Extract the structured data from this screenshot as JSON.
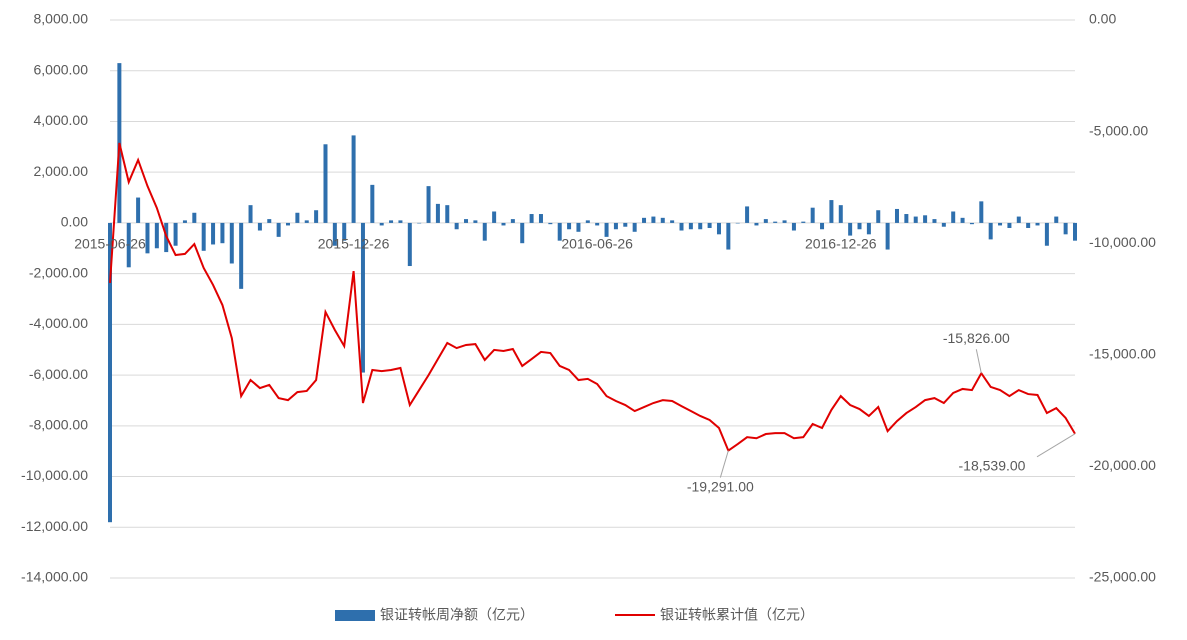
{
  "chart_data": {
    "type": "bar-line",
    "categories": [
      "2015-06-26",
      null,
      null,
      null,
      null,
      null,
      null,
      null,
      null,
      null,
      null,
      null,
      null,
      null,
      null,
      null,
      null,
      null,
      null,
      null,
      null,
      null,
      null,
      null,
      null,
      null,
      "2015-12-26",
      null,
      null,
      null,
      null,
      null,
      null,
      null,
      null,
      null,
      null,
      null,
      null,
      null,
      null,
      null,
      null,
      null,
      null,
      null,
      null,
      null,
      null,
      null,
      null,
      null,
      "2016-06-26",
      null,
      null,
      null,
      null,
      null,
      null,
      null,
      null,
      null,
      null,
      null,
      null,
      null,
      null,
      null,
      null,
      null,
      null,
      null,
      null,
      null,
      null,
      null,
      null,
      null,
      "2016-12-26",
      null,
      null,
      null,
      null,
      null,
      null,
      null,
      null,
      null,
      null,
      null,
      null,
      null,
      null,
      null,
      null,
      null,
      null,
      null,
      null,
      null,
      null,
      null,
      null,
      null
    ],
    "series": [
      {
        "name": "银证转帐周净额（亿元）",
        "color": "#2e6fad",
        "type": "bar",
        "values": [
          -11800,
          6300,
          -1750,
          1000,
          -1200,
          -1000,
          -1150,
          -900,
          100,
          400,
          -1100,
          -850,
          -800,
          -1600,
          -2600,
          700,
          -300,
          150,
          -550,
          -100,
          400,
          100,
          500,
          3100,
          -900,
          -700,
          3450,
          -5900,
          1500,
          -100,
          100,
          100,
          -1700,
          0,
          1450,
          750,
          700,
          -250,
          150,
          100,
          -700,
          450,
          -100,
          150,
          -800,
          350,
          350,
          -50,
          -700,
          -250,
          -350,
          100,
          -100,
          -550,
          -250,
          -150,
          -350,
          200,
          250,
          200,
          100,
          -300,
          -250,
          -250,
          -200,
          -450,
          -1050,
          0,
          650,
          -100,
          150,
          50,
          100,
          -300,
          50,
          600,
          -250,
          900,
          700,
          -500,
          -250,
          -450,
          500,
          -1050,
          550,
          350,
          250,
          300,
          150,
          -150,
          450,
          200,
          -50,
          850,
          -650,
          -100,
          -200,
          250,
          -200,
          -100,
          -900,
          250,
          -450,
          -700
        ]
      },
      {
        "name": "银证转帐累计值（亿元）",
        "color": "#e00000",
        "type": "line",
        "axis": "y2",
        "values": [
          -11780,
          -5510,
          -7260,
          -6270,
          -7440,
          -8420,
          -9680,
          -10530,
          -10480,
          -10040,
          -11110,
          -11870,
          -12770,
          -14250,
          -16850,
          -16130,
          -16490,
          -16350,
          -16940,
          -17030,
          -16670,
          -16620,
          -16130,
          -13080,
          -13890,
          -14610,
          -11250,
          -17160,
          -15680,
          -15730,
          -15680,
          -15590,
          -17250,
          -16580,
          -15910,
          -15190,
          -14470,
          -14700,
          -14560,
          -14520,
          -15230,
          -14780,
          -14830,
          -14740,
          -15500,
          -15190,
          -14870,
          -14920,
          -15500,
          -15680,
          -16130,
          -16080,
          -16310,
          -16850,
          -17070,
          -17250,
          -17520,
          -17340,
          -17160,
          -17030,
          -17070,
          -17300,
          -17520,
          -17740,
          -17920,
          -18280,
          -19291,
          -19000,
          -18690,
          -18740,
          -18550,
          -18510,
          -18510,
          -18740,
          -18690,
          -18100,
          -18280,
          -17470,
          -16850,
          -17250,
          -17430,
          -17740,
          -17340,
          -18420,
          -17970,
          -17610,
          -17340,
          -17030,
          -16940,
          -17160,
          -16710,
          -16530,
          -16580,
          -15826,
          -16440,
          -16580,
          -16850,
          -16580,
          -16760,
          -16800,
          -17610,
          -17390,
          -17830,
          -18539
        ],
        "value_labels": [
          null,
          null,
          null,
          null,
          null,
          null,
          null,
          null,
          null,
          null,
          null,
          null,
          null,
          null,
          null,
          null,
          null,
          null,
          null,
          null,
          null,
          null,
          null,
          null,
          null,
          null,
          null,
          null,
          null,
          null,
          null,
          null,
          null,
          null,
          null,
          null,
          null,
          null,
          null,
          null,
          null,
          null,
          null,
          null,
          null,
          null,
          null,
          null,
          null,
          null,
          null,
          null,
          null,
          null,
          null,
          null,
          null,
          null,
          null,
          null,
          null,
          null,
          null,
          null,
          null,
          null,
          "-19,291.00",
          null,
          null,
          null,
          null,
          null,
          null,
          null,
          null,
          null,
          null,
          null,
          null,
          null,
          null,
          null,
          null,
          null,
          null,
          null,
          null,
          null,
          null,
          null,
          null,
          null,
          null,
          "-15,826.00",
          null,
          null,
          null,
          null,
          null,
          null,
          null,
          null,
          null,
          "-18,539.00"
        ]
      }
    ],
    "ylim": [
      -14000,
      8000
    ],
    "yticks": [
      {
        "value": -14000,
        "label": "-14,000.00"
      },
      {
        "value": -12000,
        "label": "-12,000.00"
      },
      {
        "value": -10000,
        "label": "-10,000.00"
      },
      {
        "value": -8000,
        "label": "-8,000.00"
      },
      {
        "value": -6000,
        "label": "-6,000.00"
      },
      {
        "value": -4000,
        "label": "-4,000.00"
      },
      {
        "value": -2000,
        "label": "-2,000.00"
      },
      {
        "value": 0,
        "label": "0.00"
      },
      {
        "value": 2000,
        "label": "2,000.00"
      },
      {
        "value": 4000,
        "label": "4,000.00"
      },
      {
        "value": 6000,
        "label": "6,000.00"
      },
      {
        "value": 8000,
        "label": "8,000.00"
      }
    ],
    "y2lim": [
      -25000,
      0
    ],
    "y2ticks": [
      {
        "value": -25000,
        "label": "-25,000.00"
      },
      {
        "value": -20000,
        "label": "-20,000.00"
      },
      {
        "value": -15000,
        "label": "-15,000.00"
      },
      {
        "value": -10000,
        "label": "-10,000.00"
      },
      {
        "value": -5000,
        "label": "-5,000.00"
      },
      {
        "value": 0,
        "label": "0.00"
      }
    ],
    "grid": true,
    "legend": "bottom"
  }
}
